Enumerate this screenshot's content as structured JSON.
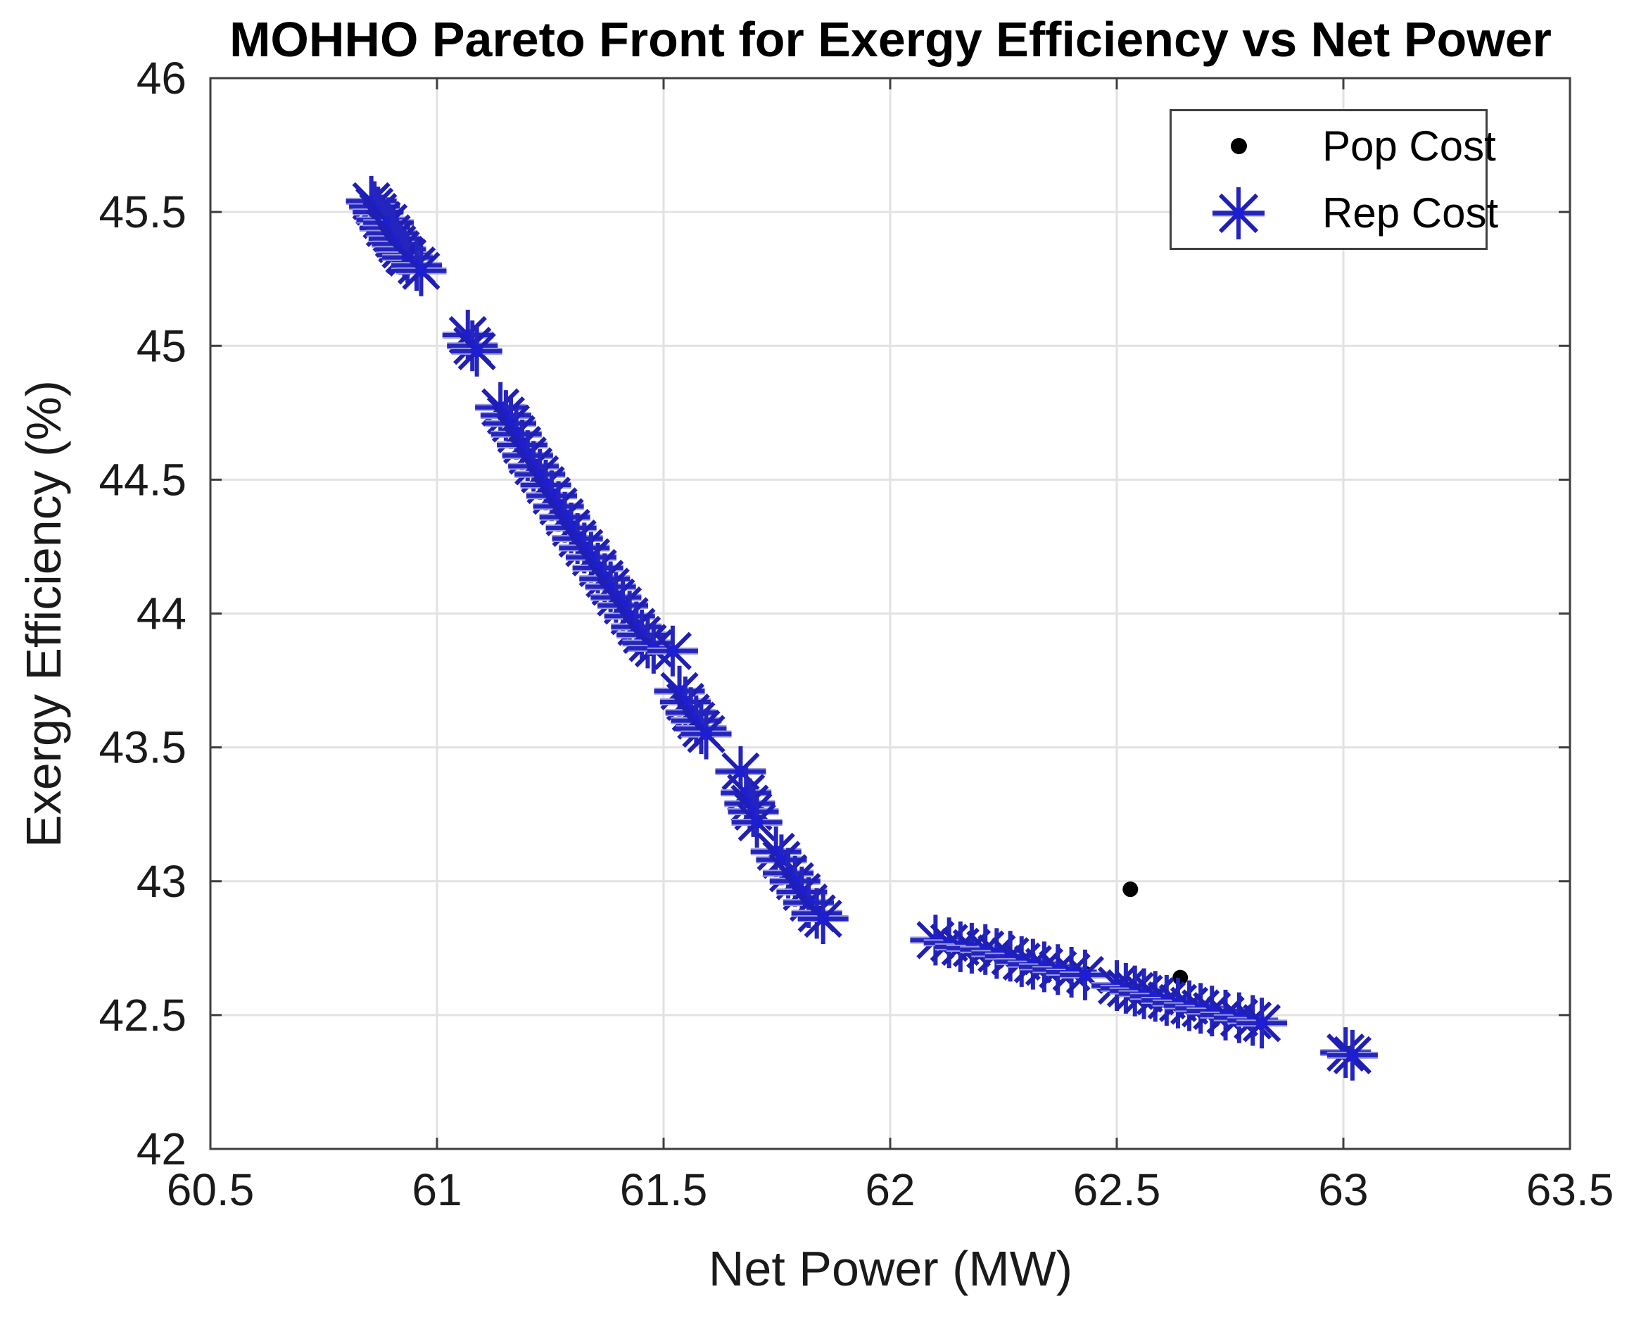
{
  "figure": {
    "title": "MOHHO Pareto Front for Exergy Efficiency vs Net Power"
  },
  "chart_data": {
    "type": "scatter",
    "title": "MOHHO Pareto Front for Exergy Efficiency vs Net Power",
    "xlabel": "Net Power (MW)",
    "ylabel": "Exergy Efficiency (%)",
    "xlim": [
      60.5,
      63.5
    ],
    "ylim": [
      42,
      46
    ],
    "xticks": [
      60.5,
      61,
      61.5,
      62,
      62.5,
      63,
      63.5
    ],
    "xtick_labels": [
      "60.5",
      "61",
      "61.5",
      "62",
      "62.5",
      "63",
      "63.5"
    ],
    "yticks": [
      42,
      42.5,
      43,
      43.5,
      44,
      44.5,
      45,
      45.5,
      46
    ],
    "ytick_labels": [
      "42",
      "42.5",
      "43",
      "43.5",
      "44",
      "44.5",
      "45",
      "45.5",
      "46"
    ],
    "grid": true,
    "colors": {
      "grid": "#e2e2e2",
      "axis_box": "#3f3f3f",
      "tick_text": "#1a1a1a",
      "pop_cost": "#000000",
      "rep_cost_main": "#2424be",
      "rep_cost_light": "#9a9ae0",
      "rep_cost_center": "#1d1dd2"
    },
    "legend": {
      "position": "top-right",
      "entries": [
        {
          "label": "Pop Cost",
          "marker": "dot",
          "color": "#000000"
        },
        {
          "label": "Rep Cost",
          "marker": "asterisk",
          "color": "#2424be"
        }
      ]
    },
    "series": [
      {
        "name": "Pop Cost",
        "marker": "dot",
        "color": "#000000",
        "points": [
          [
            60.93,
            45.34
          ],
          [
            61.163,
            44.71
          ],
          [
            61.213,
            44.55
          ],
          [
            61.268,
            44.4
          ],
          [
            61.31,
            44.28
          ],
          [
            61.345,
            44.21
          ],
          [
            61.4,
            44.05
          ],
          [
            61.448,
            43.93
          ],
          [
            61.475,
            43.87
          ],
          [
            61.56,
            43.63
          ],
          [
            61.69,
            43.28
          ],
          [
            61.755,
            43.09
          ],
          [
            61.79,
            43.0
          ],
          [
            61.832,
            42.9
          ],
          [
            62.35,
            42.68
          ],
          [
            62.43,
            42.655
          ],
          [
            62.5,
            42.605
          ],
          [
            62.53,
            42.97
          ],
          [
            62.56,
            42.585
          ],
          [
            62.61,
            42.555
          ],
          [
            62.64,
            42.64
          ],
          [
            63.01,
            42.355
          ]
        ]
      },
      {
        "name": "Rep Cost",
        "marker": "asterisk",
        "color": "#2424be",
        "points": [
          [
            60.855,
            45.54
          ],
          [
            60.862,
            45.52
          ],
          [
            60.87,
            45.5
          ],
          [
            60.878,
            45.47
          ],
          [
            60.885,
            45.44
          ],
          [
            60.893,
            45.46
          ],
          [
            60.9,
            45.42
          ],
          [
            60.905,
            45.4
          ],
          [
            60.912,
            45.38
          ],
          [
            60.92,
            45.36
          ],
          [
            60.928,
            45.34
          ],
          [
            60.935,
            45.33
          ],
          [
            60.955,
            45.3
          ],
          [
            60.965,
            45.28
          ],
          [
            61.068,
            45.04
          ],
          [
            61.078,
            45.0
          ],
          [
            61.088,
            44.98
          ],
          [
            61.14,
            44.77
          ],
          [
            61.152,
            44.74
          ],
          [
            61.163,
            44.71
          ],
          [
            61.175,
            44.67
          ],
          [
            61.188,
            44.63
          ],
          [
            61.2,
            44.59
          ],
          [
            61.213,
            44.55
          ],
          [
            61.227,
            44.52
          ],
          [
            61.24,
            44.48
          ],
          [
            61.253,
            44.44
          ],
          [
            61.268,
            44.4
          ],
          [
            61.282,
            44.36
          ],
          [
            61.296,
            44.32
          ],
          [
            61.31,
            44.28
          ],
          [
            61.325,
            44.245
          ],
          [
            61.34,
            44.21
          ],
          [
            61.355,
            44.17
          ],
          [
            61.37,
            44.13
          ],
          [
            61.383,
            44.1
          ],
          [
            61.395,
            44.06
          ],
          [
            61.41,
            44.03
          ],
          [
            61.425,
            43.99
          ],
          [
            61.44,
            43.95
          ],
          [
            61.452,
            43.92
          ],
          [
            61.465,
            43.89
          ],
          [
            61.478,
            43.87
          ],
          [
            61.52,
            43.86
          ],
          [
            61.535,
            43.71
          ],
          [
            61.548,
            43.67
          ],
          [
            61.56,
            43.63
          ],
          [
            61.572,
            43.6
          ],
          [
            61.583,
            43.57
          ],
          [
            61.594,
            43.55
          ],
          [
            61.67,
            43.41
          ],
          [
            61.682,
            43.33
          ],
          [
            61.69,
            43.29
          ],
          [
            61.698,
            43.26
          ],
          [
            61.706,
            43.22
          ],
          [
            61.748,
            43.11
          ],
          [
            61.76,
            43.08
          ],
          [
            61.775,
            43.03
          ],
          [
            61.79,
            43.0
          ],
          [
            61.805,
            42.96
          ],
          [
            61.82,
            42.92
          ],
          [
            61.838,
            42.88
          ],
          [
            61.852,
            42.86
          ],
          [
            62.1,
            42.78
          ],
          [
            62.13,
            42.77
          ],
          [
            62.155,
            42.755
          ],
          [
            62.18,
            42.75
          ],
          [
            62.21,
            42.745
          ],
          [
            62.235,
            42.73
          ],
          [
            62.265,
            42.72
          ],
          [
            62.29,
            42.7
          ],
          [
            62.315,
            42.69
          ],
          [
            62.34,
            42.68
          ],
          [
            62.37,
            42.67
          ],
          [
            62.4,
            42.66
          ],
          [
            62.43,
            42.65
          ],
          [
            62.5,
            42.61
          ],
          [
            62.52,
            42.6
          ],
          [
            62.54,
            42.59
          ],
          [
            62.56,
            42.58
          ],
          [
            62.585,
            42.57
          ],
          [
            62.61,
            42.555
          ],
          [
            62.635,
            42.545
          ],
          [
            62.66,
            42.535
          ],
          [
            62.685,
            42.525
          ],
          [
            62.71,
            42.515
          ],
          [
            62.74,
            42.5
          ],
          [
            62.77,
            42.49
          ],
          [
            62.8,
            42.48
          ],
          [
            62.82,
            42.47
          ],
          [
            63.005,
            42.36
          ],
          [
            63.02,
            42.35
          ]
        ]
      }
    ]
  }
}
